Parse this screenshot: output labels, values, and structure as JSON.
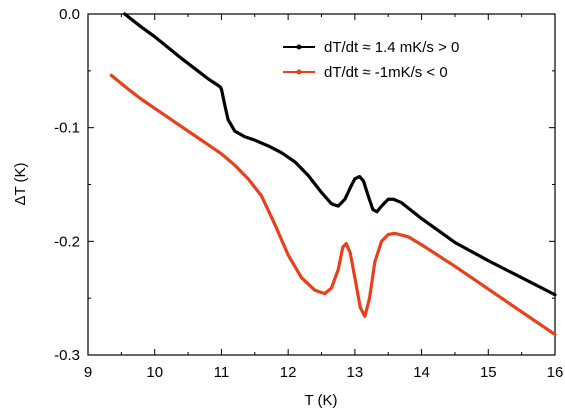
{
  "chart_data": {
    "type": "line",
    "title": "",
    "xlabel": "T (K)",
    "ylabel": "ΔT (K)",
    "xlim": [
      9,
      16
    ],
    "ylim": [
      -0.3,
      0.0
    ],
    "xticks": [
      9,
      10,
      11,
      12,
      13,
      14,
      15,
      16
    ],
    "yticks": [
      0.0,
      -0.1,
      -0.2,
      -0.3
    ],
    "ytick_labels": [
      "0.0",
      "-0.1",
      "-0.2",
      "-0.3"
    ],
    "grid": false,
    "legend_position": "top-right",
    "series": [
      {
        "name": "dT/dt  ≈ 1.4 mK/s > 0",
        "color": "#000000",
        "points": [
          [
            9.55,
            0.0
          ],
          [
            9.8,
            -0.0115
          ],
          [
            10.0,
            -0.02
          ],
          [
            10.2,
            -0.0295
          ],
          [
            10.4,
            -0.039
          ],
          [
            10.6,
            -0.048
          ],
          [
            10.8,
            -0.057
          ],
          [
            10.98,
            -0.064
          ],
          [
            11.0,
            -0.066
          ],
          [
            11.05,
            -0.08
          ],
          [
            11.1,
            -0.093
          ],
          [
            11.2,
            -0.103
          ],
          [
            11.35,
            -0.108
          ],
          [
            11.5,
            -0.111
          ],
          [
            11.7,
            -0.116
          ],
          [
            11.9,
            -0.122
          ],
          [
            12.1,
            -0.13
          ],
          [
            12.3,
            -0.142
          ],
          [
            12.5,
            -0.157
          ],
          [
            12.65,
            -0.167
          ],
          [
            12.75,
            -0.169
          ],
          [
            12.85,
            -0.163
          ],
          [
            12.93,
            -0.153
          ],
          [
            13.0,
            -0.145
          ],
          [
            13.07,
            -0.143
          ],
          [
            13.13,
            -0.147
          ],
          [
            13.2,
            -0.16
          ],
          [
            13.27,
            -0.172
          ],
          [
            13.33,
            -0.174
          ],
          [
            13.4,
            -0.169
          ],
          [
            13.5,
            -0.163
          ],
          [
            13.58,
            -0.163
          ],
          [
            13.7,
            -0.166
          ],
          [
            14.0,
            -0.18
          ],
          [
            14.5,
            -0.201
          ],
          [
            15.0,
            -0.217
          ],
          [
            15.5,
            -0.232
          ],
          [
            16.0,
            -0.247
          ]
        ]
      },
      {
        "name": "dT/dt ≈ -1mK/s < 0",
        "color": "#e8401c",
        "points": [
          [
            9.35,
            -0.054
          ],
          [
            9.6,
            -0.066
          ],
          [
            9.8,
            -0.075
          ],
          [
            10.0,
            -0.083
          ],
          [
            10.2,
            -0.091
          ],
          [
            10.4,
            -0.099
          ],
          [
            10.6,
            -0.107
          ],
          [
            10.8,
            -0.115
          ],
          [
            11.0,
            -0.123
          ],
          [
            11.2,
            -0.133
          ],
          [
            11.4,
            -0.145
          ],
          [
            11.6,
            -0.16
          ],
          [
            11.8,
            -0.185
          ],
          [
            12.0,
            -0.212
          ],
          [
            12.2,
            -0.232
          ],
          [
            12.4,
            -0.243
          ],
          [
            12.55,
            -0.246
          ],
          [
            12.65,
            -0.241
          ],
          [
            12.75,
            -0.225
          ],
          [
            12.82,
            -0.205
          ],
          [
            12.87,
            -0.202
          ],
          [
            12.93,
            -0.21
          ],
          [
            13.0,
            -0.232
          ],
          [
            13.08,
            -0.258
          ],
          [
            13.15,
            -0.266
          ],
          [
            13.22,
            -0.25
          ],
          [
            13.3,
            -0.218
          ],
          [
            13.4,
            -0.2
          ],
          [
            13.5,
            -0.194
          ],
          [
            13.6,
            -0.193
          ],
          [
            13.8,
            -0.196
          ],
          [
            14.0,
            -0.203
          ],
          [
            14.5,
            -0.222
          ],
          [
            15.0,
            -0.242
          ],
          [
            15.5,
            -0.262
          ],
          [
            16.0,
            -0.282
          ]
        ]
      }
    ]
  }
}
